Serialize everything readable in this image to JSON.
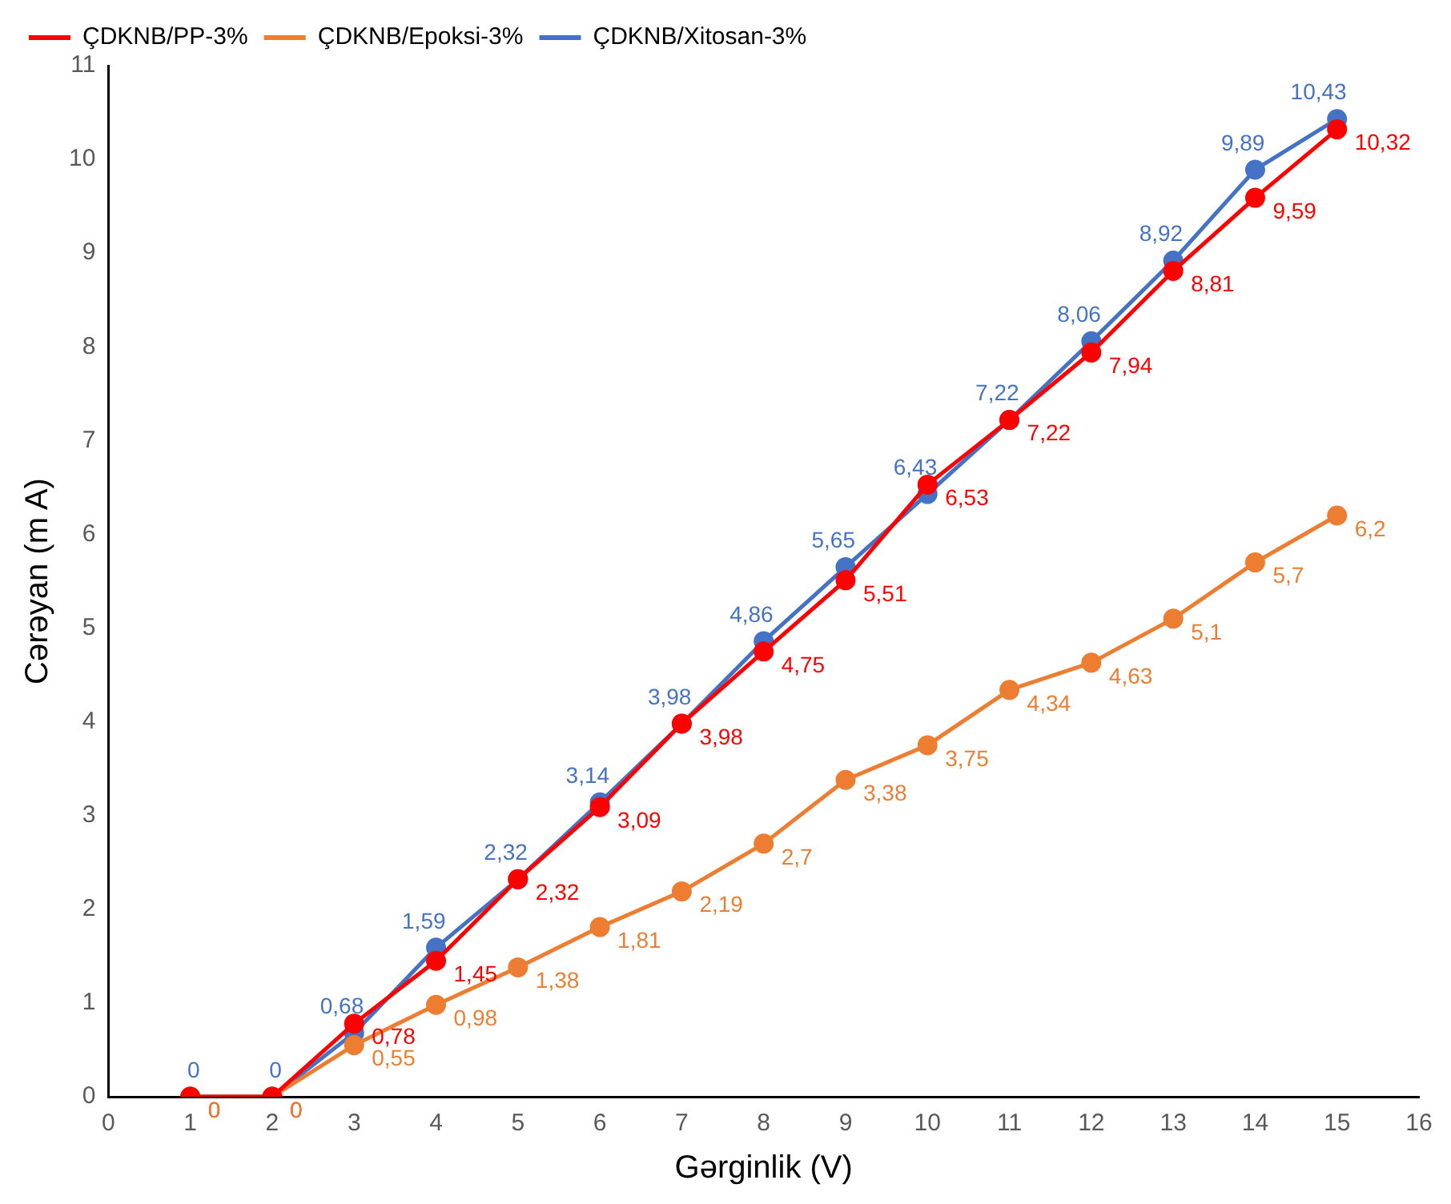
{
  "chart_data": {
    "type": "line",
    "xlabel": "Gərginlik (V)",
    "ylabel": "Cərəyan (m A)",
    "x": [
      1,
      2,
      3,
      4,
      5,
      6,
      7,
      8,
      9,
      10,
      11,
      12,
      13,
      14,
      15
    ],
    "series": [
      {
        "name": "ÇDKNB/PP-3%",
        "color": "#ff0000",
        "values": [
          0,
          0,
          0.78,
          1.45,
          2.32,
          3.09,
          3.98,
          4.75,
          5.51,
          6.53,
          7.22,
          7.94,
          8.81,
          9.59,
          10.32
        ],
        "value_labels": [
          "0",
          "0",
          "0,78",
          "1,45",
          "2,32",
          "3,09",
          "3,98",
          "4,75",
          "5,51",
          "6,53",
          "7,22",
          "7,94",
          "8,81",
          "9,59",
          "10,32"
        ]
      },
      {
        "name": "ÇDKNB/Epoksi-3%",
        "color": "#ed7d31",
        "values": [
          0,
          0,
          0.55,
          0.98,
          1.38,
          1.81,
          2.19,
          2.7,
          3.38,
          3.75,
          4.34,
          4.63,
          5.1,
          5.7,
          6.2
        ],
        "value_labels": [
          "0",
          "0",
          "0,55",
          "0,98",
          "1,38",
          "1,81",
          "2,19",
          "2,7",
          "3,38",
          "3,75",
          "4,34",
          "4,63",
          "5,1",
          "5,7",
          "6,2"
        ]
      },
      {
        "name": "ÇDKNB/Xitosan-3%",
        "color": "#4472c4",
        "values": [
          0,
          0,
          0.68,
          1.59,
          2.32,
          3.14,
          3.98,
          4.86,
          5.65,
          6.43,
          7.22,
          8.06,
          8.92,
          9.89,
          10.43
        ],
        "value_labels": [
          "0",
          "0",
          "0,68",
          "1,59",
          "2,32",
          "3,14",
          "3,98",
          "4,86",
          "5,65",
          "6,43",
          "7,22",
          "8,06",
          "8,92",
          "9,89",
          "10,43"
        ]
      }
    ],
    "xlim": [
      0,
      16
    ],
    "xticks": [
      0,
      1,
      2,
      3,
      4,
      5,
      6,
      7,
      8,
      9,
      10,
      11,
      12,
      13,
      14,
      15,
      16
    ],
    "ylim": [
      0,
      11
    ],
    "yticks": [
      0,
      1,
      2,
      3,
      4,
      5,
      6,
      7,
      8,
      9,
      10,
      11
    ],
    "grid": false,
    "legend": "top left",
    "marker": "circle",
    "line_style": "solid"
  }
}
